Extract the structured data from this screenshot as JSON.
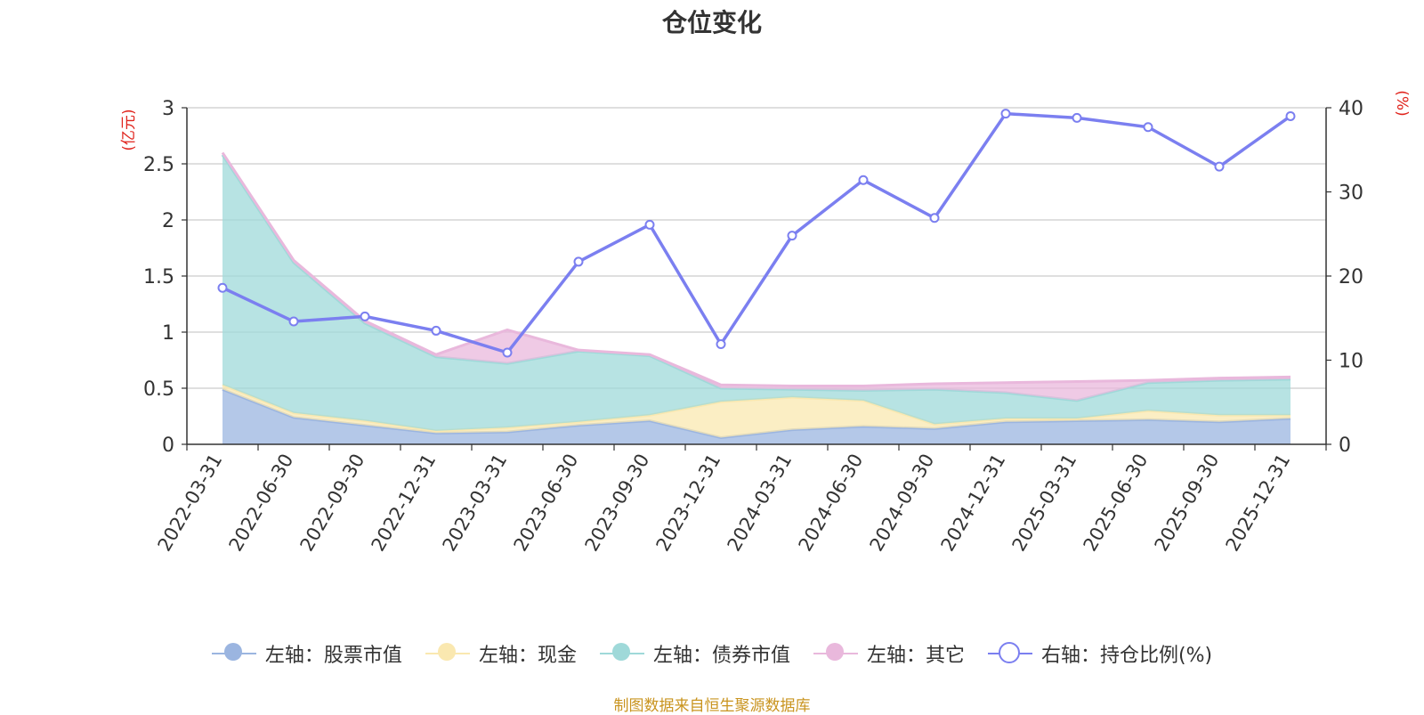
{
  "title": "仓位变化",
  "source_note": "制图数据来自恒生聚源数据库",
  "chart_data": {
    "type": "area",
    "title": "仓位变化",
    "categories": [
      "2022-03-31",
      "2022-06-30",
      "2022-09-30",
      "2022-12-31",
      "2023-03-31",
      "2023-06-30",
      "2023-09-30",
      "2023-12-31",
      "2024-03-31",
      "2024-06-30",
      "2024-09-30",
      "2024-12-31",
      "2025-03-31",
      "2025-06-30",
      "2025-09-30",
      "2025-12-31"
    ],
    "left_axis": {
      "unit_label": "(亿元)",
      "ylim": [
        0,
        3
      ],
      "ticks": [
        "0",
        "0.5",
        "1",
        "1.5",
        "2",
        "2.5",
        "3"
      ]
    },
    "right_axis": {
      "unit_label": "(%)",
      "ylim": [
        0,
        40
      ],
      "ticks": [
        "0",
        "10",
        "20",
        "30",
        "40"
      ]
    },
    "series": [
      {
        "name": "左轴：股票市值",
        "type": "stacked-area",
        "axis": "left",
        "color": "#9bb5e0",
        "values": [
          0.49,
          0.24,
          0.17,
          0.1,
          0.11,
          0.17,
          0.21,
          0.06,
          0.13,
          0.16,
          0.14,
          0.2,
          0.21,
          0.22,
          0.2,
          0.23
        ]
      },
      {
        "name": "左轴：现金",
        "type": "stacked-area",
        "axis": "left",
        "color": "#fae8b0",
        "values": [
          0.04,
          0.04,
          0.04,
          0.02,
          0.04,
          0.03,
          0.05,
          0.32,
          0.29,
          0.23,
          0.04,
          0.03,
          0.02,
          0.08,
          0.06,
          0.03
        ]
      },
      {
        "name": "左轴：债券市值",
        "type": "stacked-area",
        "axis": "left",
        "color": "#9fd9d9",
        "values": [
          2.05,
          1.34,
          0.87,
          0.66,
          0.57,
          0.63,
          0.53,
          0.12,
          0.07,
          0.09,
          0.31,
          0.23,
          0.16,
          0.25,
          0.31,
          0.32
        ]
      },
      {
        "name": "左轴：其它",
        "type": "stacked-area",
        "axis": "left",
        "color": "#e9b8dc",
        "values": [
          0.02,
          0.02,
          0.02,
          0.02,
          0.3,
          0.01,
          0.01,
          0.03,
          0.03,
          0.04,
          0.05,
          0.09,
          0.17,
          0.02,
          0.02,
          0.02
        ]
      },
      {
        "name": "右轴：持仓比例(%)",
        "type": "line",
        "axis": "right",
        "color": "#7b7ff0",
        "values": [
          18.6,
          14.6,
          15.2,
          13.5,
          10.9,
          21.7,
          26.1,
          11.9,
          24.8,
          31.4,
          26.9,
          39.3,
          38.8,
          37.7,
          33.0,
          39.0
        ]
      }
    ]
  }
}
